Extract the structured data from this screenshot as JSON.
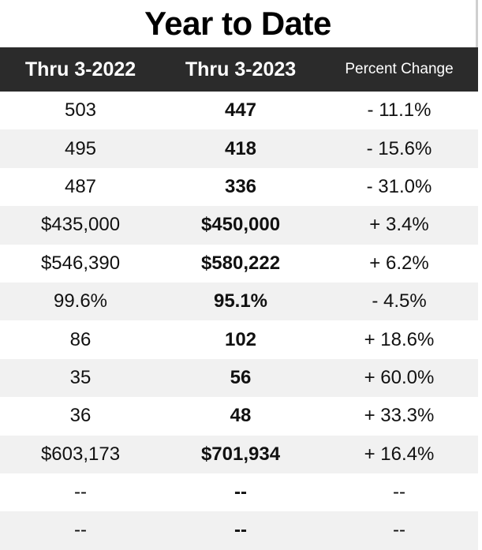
{
  "title": "Year to Date",
  "headers": [
    "Thru 3-2022",
    "Thru 3-2023",
    "Percent Change"
  ],
  "rows": [
    [
      "503",
      "447",
      "- 11.1%"
    ],
    [
      "495",
      "418",
      "- 15.6%"
    ],
    [
      "487",
      "336",
      "- 31.0%"
    ],
    [
      "$435,000",
      "$450,000",
      "+ 3.4%"
    ],
    [
      "$546,390",
      "$580,222",
      "+ 6.2%"
    ],
    [
      "99.6%",
      "95.1%",
      "- 4.5%"
    ],
    [
      "86",
      "102",
      "+ 18.6%"
    ],
    [
      "35",
      "56",
      "+ 60.0%"
    ],
    [
      "36",
      "48",
      "+ 33.3%"
    ],
    [
      "$603,173",
      "$701,934",
      "+ 16.4%"
    ],
    [
      "--",
      "--",
      "--"
    ],
    [
      "--",
      "--",
      "--"
    ]
  ],
  "colors": {
    "header_bg": "#2b2b2b",
    "stripe": "#f1f1f1"
  }
}
